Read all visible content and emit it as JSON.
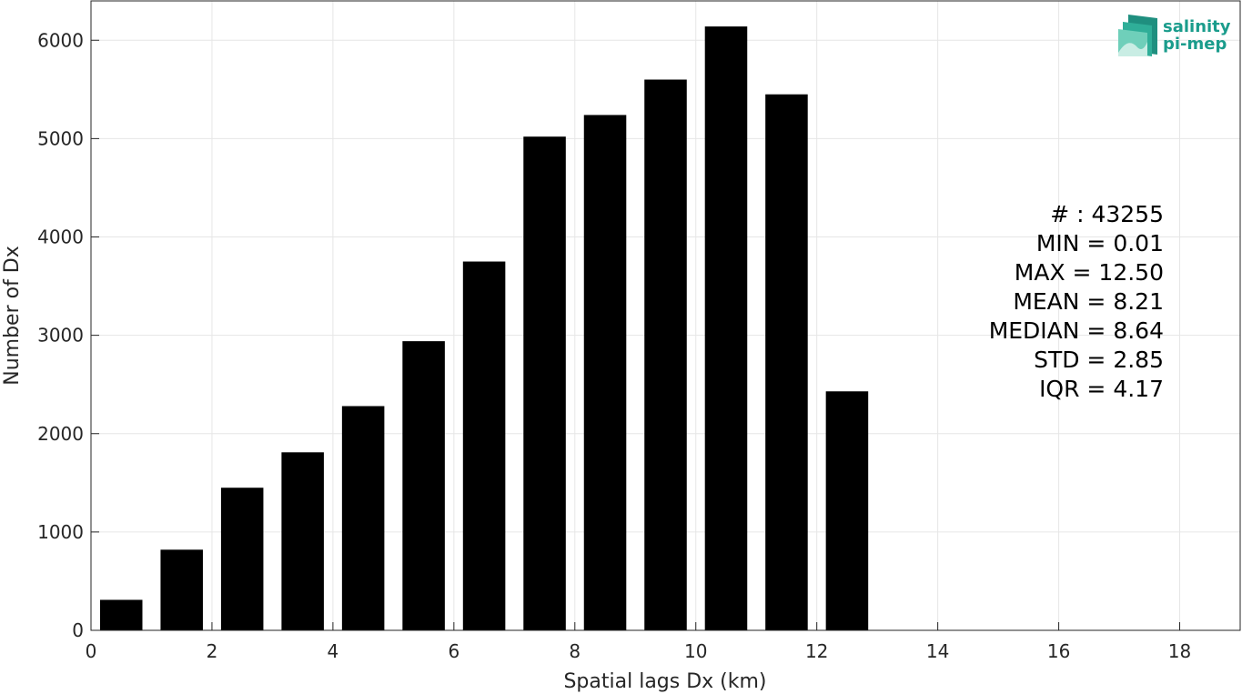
{
  "chart_data": {
    "type": "bar",
    "title": "",
    "xlabel": "Spatial lags Dx (km)",
    "ylabel": "Number of Dx",
    "xlim": [
      0,
      19
    ],
    "ylim": [
      0,
      6400
    ],
    "grid": true,
    "bar_color": "#000000",
    "bar_width": 0.7,
    "x": [
      0.5,
      1.5,
      2.5,
      3.5,
      4.5,
      5.5,
      6.5,
      7.5,
      8.5,
      9.5,
      10.5,
      11.5,
      12.5
    ],
    "values": [
      310,
      820,
      1450,
      1810,
      2280,
      2940,
      3750,
      5020,
      5240,
      5600,
      6140,
      5450,
      2430
    ],
    "x_ticks": [
      0,
      2,
      4,
      6,
      8,
      10,
      12,
      14,
      16,
      18
    ],
    "x_tick_labels": [
      "0",
      "2",
      "4",
      "6",
      "8",
      "10",
      "12",
      "14",
      "16",
      "18"
    ],
    "y_ticks": [
      0,
      1000,
      2000,
      3000,
      4000,
      5000,
      6000
    ],
    "y_tick_labels": [
      "0",
      "1000",
      "2000",
      "3000",
      "4000",
      "5000",
      "6000"
    ],
    "annotations": [
      "# : 43255",
      "MIN = 0.01",
      "MAX =  12.50",
      "MEAN = 8.21",
      "MEDIAN = 8.64",
      "STD = 2.85",
      "IQR = 4.17"
    ]
  },
  "logo": {
    "line1": "salinity",
    "line2": "pi-mep",
    "color": "#1a9c8c"
  }
}
